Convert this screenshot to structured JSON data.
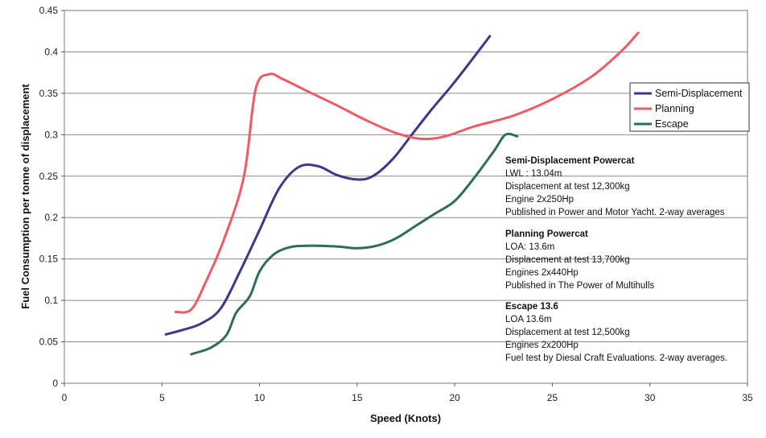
{
  "chart_data": {
    "type": "line",
    "title": "",
    "xlabel": "Speed (Knots)",
    "ylabel": "Fuel Consumption per tonne of displacement",
    "xlim": [
      0,
      35
    ],
    "ylim": [
      0,
      0.45
    ],
    "x_ticks": [
      "0",
      "5",
      "10",
      "15",
      "20",
      "25",
      "30",
      "35"
    ],
    "y_ticks": [
      "0",
      "0.05",
      "0.1",
      "0.15",
      "0.2",
      "0.25",
      "0.3",
      "0.35",
      "0.4",
      "0.45"
    ],
    "grid": "horizontal",
    "legend_position": "right",
    "series": [
      {
        "name": "Semi-Displacement",
        "color": "#3a3a8c",
        "points": [
          [
            5.2,
            0.059
          ],
          [
            6,
            0.064
          ],
          [
            7,
            0.072
          ],
          [
            8,
            0.09
          ],
          [
            9,
            0.135
          ],
          [
            10,
            0.185
          ],
          [
            11,
            0.235
          ],
          [
            12,
            0.261
          ],
          [
            13,
            0.262
          ],
          [
            14,
            0.251
          ],
          [
            15,
            0.246
          ],
          [
            15.8,
            0.25
          ],
          [
            16.8,
            0.27
          ],
          [
            17.8,
            0.3
          ],
          [
            18.8,
            0.33
          ],
          [
            19.8,
            0.358
          ],
          [
            20.8,
            0.388
          ],
          [
            21.8,
            0.419
          ]
        ]
      },
      {
        "name": "Planning",
        "color": "#f05a64",
        "points": [
          [
            5.7,
            0.086
          ],
          [
            6.5,
            0.089
          ],
          [
            7.2,
            0.12
          ],
          [
            8.2,
            0.175
          ],
          [
            9.2,
            0.25
          ],
          [
            9.8,
            0.355
          ],
          [
            10.5,
            0.373
          ],
          [
            11.2,
            0.367
          ],
          [
            12.5,
            0.352
          ],
          [
            14,
            0.335
          ],
          [
            15.5,
            0.317
          ],
          [
            17,
            0.302
          ],
          [
            18.3,
            0.295
          ],
          [
            19.5,
            0.298
          ],
          [
            21,
            0.31
          ],
          [
            23,
            0.323
          ],
          [
            25,
            0.343
          ],
          [
            27,
            0.37
          ],
          [
            28.5,
            0.4
          ],
          [
            29.4,
            0.423
          ]
        ]
      },
      {
        "name": "Escape",
        "color": "#2e6e57",
        "points": [
          [
            6.5,
            0.035
          ],
          [
            7.5,
            0.043
          ],
          [
            8.3,
            0.058
          ],
          [
            8.8,
            0.085
          ],
          [
            9.5,
            0.105
          ],
          [
            10,
            0.135
          ],
          [
            10.7,
            0.155
          ],
          [
            11.5,
            0.164
          ],
          [
            12.5,
            0.166
          ],
          [
            14,
            0.165
          ],
          [
            15,
            0.163
          ],
          [
            16,
            0.166
          ],
          [
            17,
            0.175
          ],
          [
            18,
            0.19
          ],
          [
            19,
            0.205
          ],
          [
            20,
            0.22
          ],
          [
            21,
            0.248
          ],
          [
            22,
            0.28
          ],
          [
            22.6,
            0.3
          ],
          [
            23.2,
            0.298
          ]
        ]
      }
    ],
    "annotations": [
      {
        "title": "Semi-Displacement Powercat",
        "lines": [
          "LWL : 13.04m",
          "Displacement at test 12,300kg",
          "Engine 2x250Hp",
          "Published in Power and Motor Yacht. 2-way averages"
        ]
      },
      {
        "title": "Planning Powercat",
        "lines": [
          "LOA: 13.6m",
          "Displacement at test 13,700kg",
          "Engines 2x440Hp",
          "Published in The Power of Multihulls"
        ]
      },
      {
        "title": "Escape 13.6",
        "lines": [
          "LOA 13.6m",
          "Displacement at test 12,500kg",
          "Engines 2x200Hp",
          "Fuel test by Diesal Craft Evaluations. 2-way averages."
        ]
      }
    ]
  }
}
